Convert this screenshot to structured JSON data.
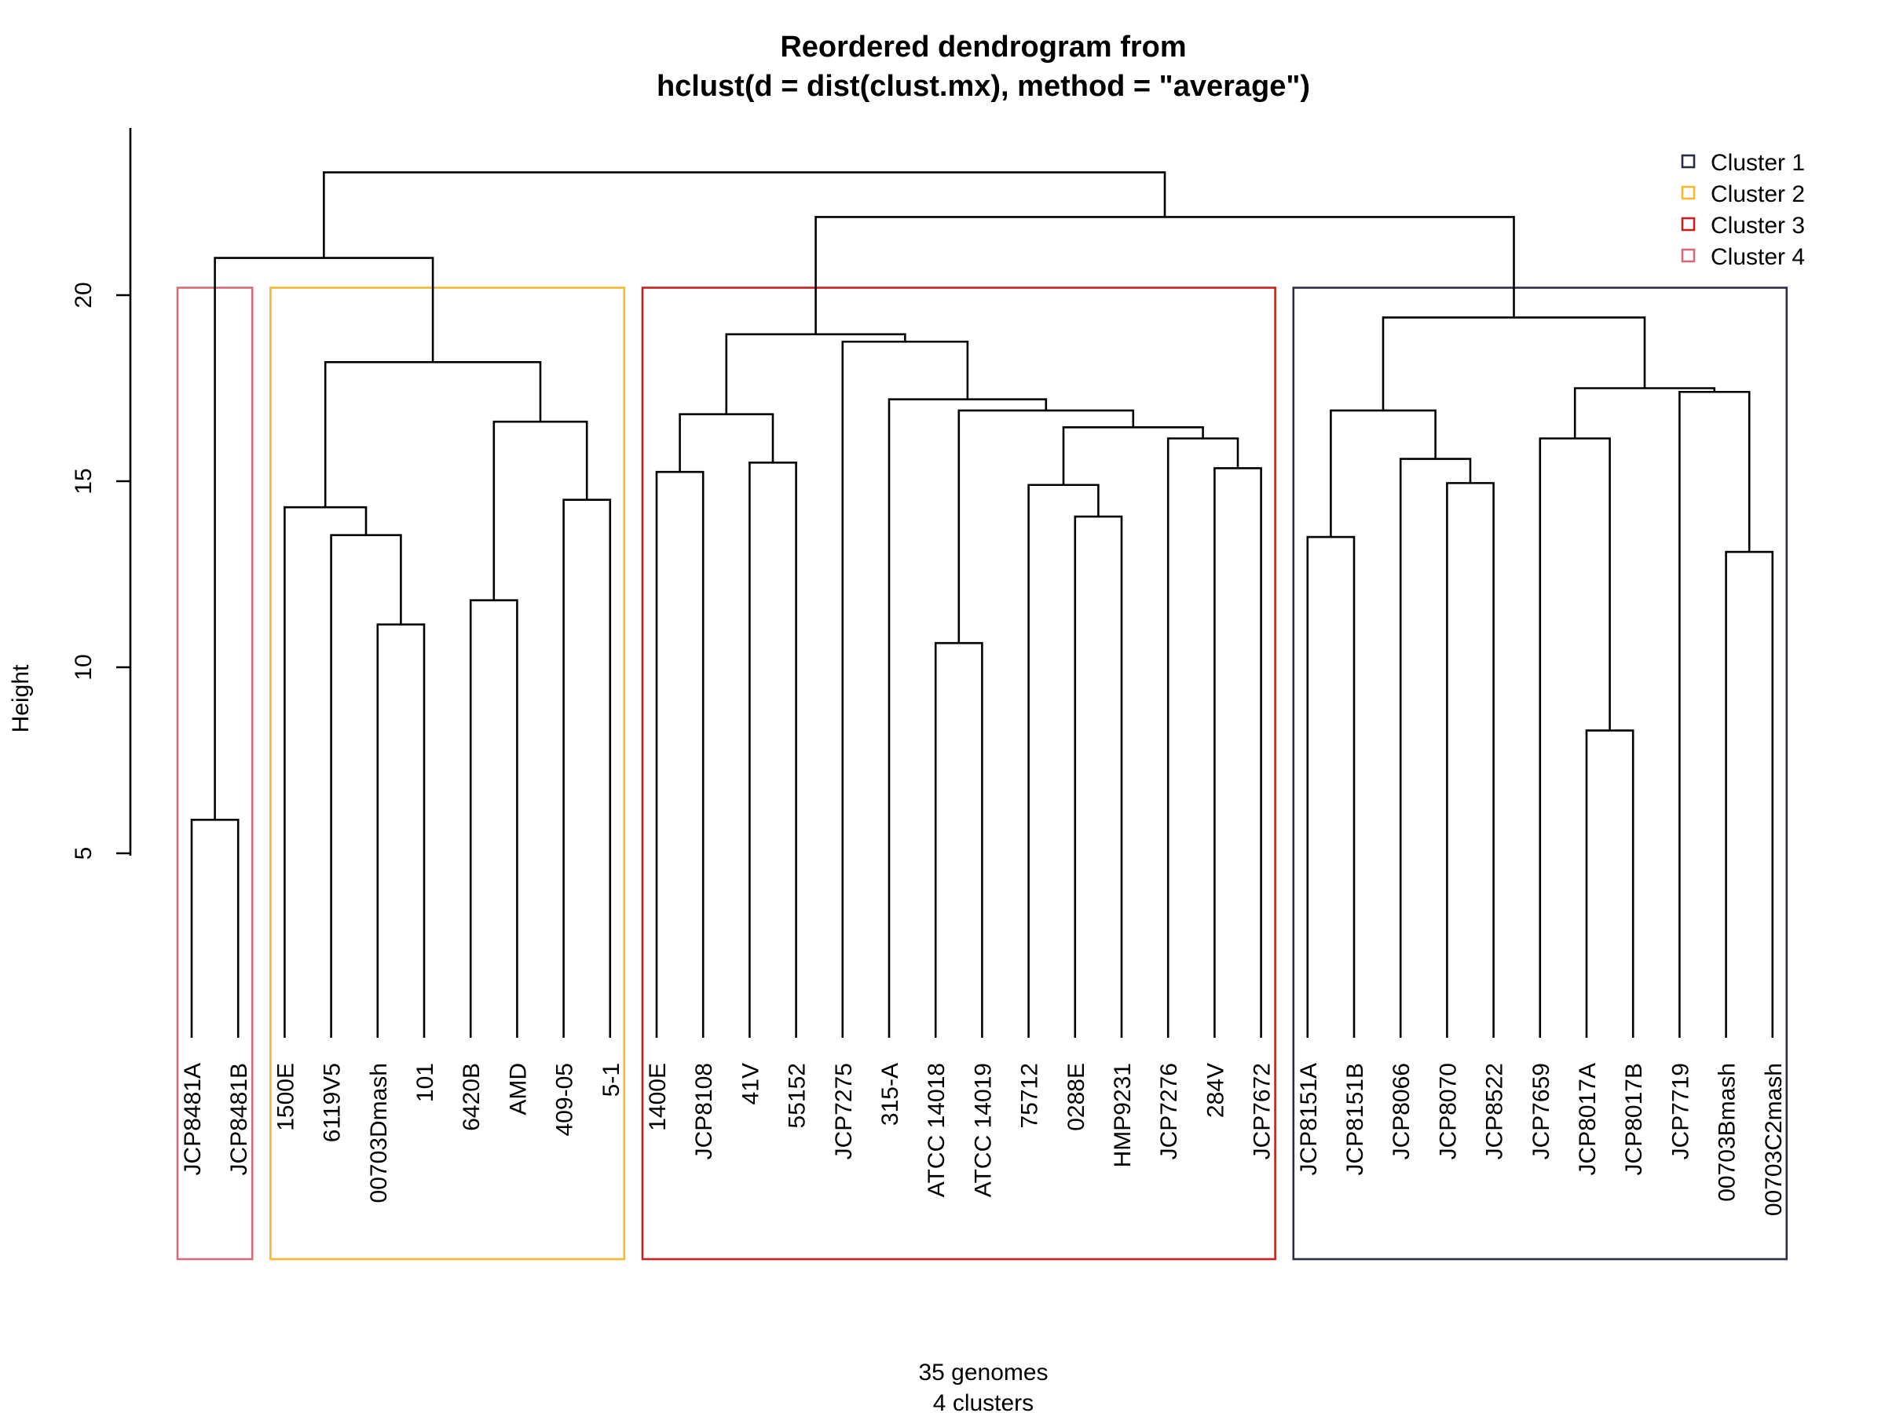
{
  "chart_data": {
    "type": "dendrogram",
    "title": "Reordered dendrogram from",
    "subtitle": "hclust(d = dist(clust.mx), method = \"average\")",
    "ylabel": "Height",
    "xlabel": "35 genomes",
    "xlabel2": "4 clusters",
    "ylim": [
      0,
      24.5
    ],
    "yticks": [
      5,
      10,
      15,
      20
    ],
    "leaves": [
      "JCP8481A",
      "JCP8481B",
      "1500E",
      "6119V5",
      "00703Dmash",
      "101",
      "6420B",
      "AMD",
      "409-05",
      "5-1",
      "1400E",
      "JCP8108",
      "41V",
      "55152",
      "JCP7275",
      "315-A",
      "ATCC 14018",
      "ATCC 14019",
      "75712",
      "0288E",
      "HMP9231",
      "JCP7276",
      "284V",
      "JCP7672",
      "JCP8151A",
      "JCP8151B",
      "JCP8066",
      "JCP8070",
      "JCP8522",
      "JCP7659",
      "JCP8017A",
      "JCP8017B",
      "JCP7719",
      "00703Bmash",
      "00703C2mash"
    ],
    "merges": [
      {
        "left": "JCP8481A",
        "right": "JCP8481B",
        "height": 5.9
      },
      {
        "left": "101",
        "right": "00703Dmash",
        "height": 11.15
      },
      {
        "left": "6119V5",
        "right": "00703Dmash|101",
        "height": 13.55
      },
      {
        "left": "1500E",
        "right": "6119V5|00703Dmash|101",
        "height": 14.3
      },
      {
        "left": "6420B",
        "right": "AMD",
        "height": 11.8
      },
      {
        "left": "409-05",
        "right": "5-1",
        "height": 14.5
      },
      {
        "left": "6420B|AMD",
        "right": "409-05|5-1",
        "height": 16.6
      },
      {
        "left": "1500E..101",
        "right": "6420B..5-1",
        "height": 18.2
      },
      {
        "left": "JCP8481A|JCP8481B",
        "right": "1500E..5-1",
        "height": 21.0
      },
      {
        "left": "1400E",
        "right": "JCP8108",
        "height": 15.25
      },
      {
        "left": "41V",
        "right": "55152",
        "height": 15.5
      },
      {
        "left": "1400E|JCP8108",
        "right": "41V|55152",
        "height": 16.8
      },
      {
        "left": "ATCC 14018",
        "right": "ATCC 14019",
        "height": 10.65
      },
      {
        "left": "0288E",
        "right": "HMP9231",
        "height": 14.05
      },
      {
        "left": "75712",
        "right": "0288E|HMP9231",
        "height": 14.9
      },
      {
        "left": "284V",
        "right": "JCP7672",
        "height": 15.35
      },
      {
        "left": "JCP7276",
        "right": "284V|JCP7672",
        "height": 16.15
      },
      {
        "left": "75712..HMP9231",
        "right": "JCP7276..JCP7672",
        "height": 16.45
      },
      {
        "left": "ATCC 14018|ATCC 14019",
        "right": "75712..JCP7672",
        "height": 16.9
      },
      {
        "left": "315-A",
        "right": "ATCC 14018..JCP7672",
        "height": 17.2
      },
      {
        "left": "JCP7275",
        "right": "315-A..JCP7672",
        "height": 18.75
      },
      {
        "left": "1400E..55152",
        "right": "JCP7275..JCP7672",
        "height": 18.95
      },
      {
        "left": "JCP8151A",
        "right": "JCP8151B",
        "height": 13.5
      },
      {
        "left": "JCP8070",
        "right": "JCP8522",
        "height": 14.95
      },
      {
        "left": "JCP8066",
        "right": "JCP8070|JCP8522",
        "height": 15.6
      },
      {
        "left": "JCP8151A|JCP8151B",
        "right": "JCP8066..JCP8522",
        "height": 16.9
      },
      {
        "left": "JCP8017A",
        "right": "JCP8017B",
        "height": 8.3
      },
      {
        "left": "JCP7659",
        "right": "JCP8017A|JCP8017B",
        "height": 16.15
      },
      {
        "left": "00703Bmash",
        "right": "00703C2mash",
        "height": 13.1
      },
      {
        "left": "JCP7719",
        "right": "00703Bmash|00703C2mash",
        "height": 17.4
      },
      {
        "left": "JCP7659..JCP8017B",
        "right": "JCP7719..00703C2mash",
        "height": 17.5
      },
      {
        "left": "JCP8151A..JCP8522",
        "right": "JCP7659..00703C2mash",
        "height": 19.4
      },
      {
        "left": "1400E..JCP7672",
        "right": "JCP8151A..00703C2mash",
        "height": 22.1
      },
      {
        "left": "JCP8481A..5-1",
        "right": "1400E..00703C2mash",
        "height": 23.3
      }
    ],
    "clusters": [
      {
        "name": "Cluster 1",
        "color": "#2b2d42",
        "first": "JCP8151A",
        "last": "00703C2mash"
      },
      {
        "name": "Cluster 2",
        "color": "#f5b82e",
        "first": "1500E",
        "last": "5-1"
      },
      {
        "name": "Cluster 3",
        "color": "#c8201e",
        "first": "1400E",
        "last": "JCP7672"
      },
      {
        "name": "Cluster 4",
        "color": "#d66a7a",
        "first": "JCP8481A",
        "last": "JCP8481B"
      }
    ],
    "rect_top_height": 20.2,
    "legend_position": "top-right"
  }
}
